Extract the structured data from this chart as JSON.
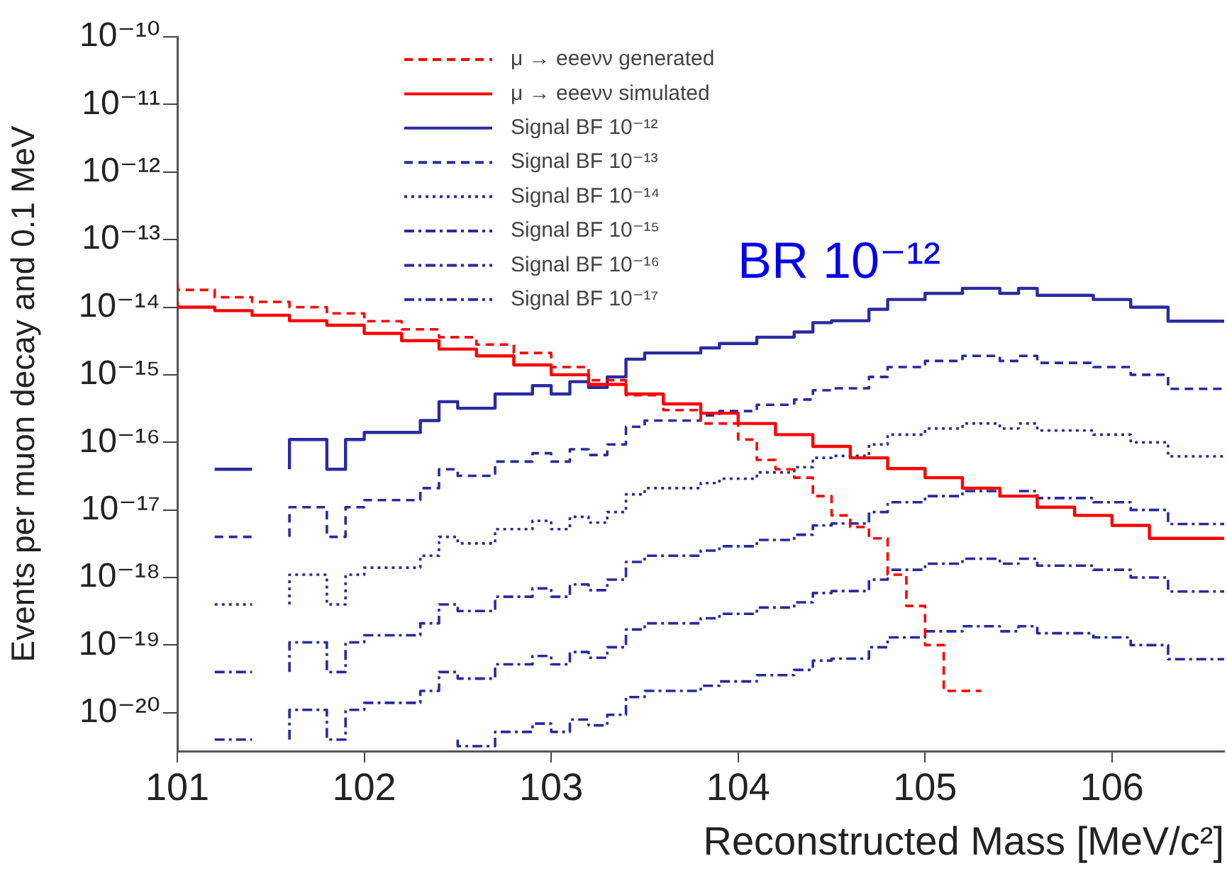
{
  "chart_data": {
    "type": "step",
    "xlabel": "Reconstructed Mass [MeV/c²]",
    "ylabel": "Events per muon decay and 0.1 MeV",
    "xlim": [
      101,
      106.6
    ],
    "xticks": [
      101,
      102,
      103,
      104,
      105,
      106
    ],
    "ylim": [
      2.7e-21,
      1e-10
    ],
    "yticks": [
      {
        "value": 1e-10,
        "label": "10⁻¹⁰"
      },
      {
        "value": 1e-11,
        "label": "10⁻¹¹"
      },
      {
        "value": 1e-12,
        "label": "10⁻¹²"
      },
      {
        "value": 1e-13,
        "label": "10⁻¹³"
      },
      {
        "value": 1e-14,
        "label": "10⁻¹⁴"
      },
      {
        "value": 1e-15,
        "label": "10⁻¹⁵"
      },
      {
        "value": 1e-16,
        "label": "10⁻¹⁶"
      },
      {
        "value": 1e-17,
        "label": "10⁻¹⁷"
      },
      {
        "value": 1e-18,
        "label": "10⁻¹⁸"
      },
      {
        "value": 1e-19,
        "label": "10⁻¹⁹"
      },
      {
        "value": 1e-20,
        "label": "10⁻²⁰"
      }
    ],
    "log": "y",
    "grid": false,
    "legend": "top",
    "marker": "none",
    "annotations": [
      "BR 10⁻¹²"
    ],
    "series": [
      {
        "name": "μ → eeeνν generated",
        "color": "#ff0000",
        "line_style": "dashed",
        "x": [
          101.0,
          101.2,
          101.4,
          101.6,
          101.8,
          102.0,
          102.2,
          102.4,
          102.6,
          102.8,
          103.0,
          103.2,
          103.4,
          103.6,
          103.8,
          104.0,
          104.1,
          104.2,
          104.3,
          104.4,
          104.5,
          104.6,
          104.7,
          104.8,
          104.9,
          105.0,
          105.1,
          105.2,
          105.3
        ],
        "values": [
          2.2e-14,
          1.8e-14,
          1.4e-14,
          1.2e-14,
          1e-14,
          8.1e-15,
          6.2e-15,
          4.7e-15,
          3.6e-15,
          2.8e-15,
          2.1e-15,
          1.3e-15,
          8.3e-16,
          5e-16,
          3e-16,
          1.9e-16,
          1.1e-16,
          5.5e-17,
          4e-17,
          3e-17,
          1.6e-17,
          8.3e-18,
          5.6e-18,
          3.8e-18,
          1.1e-18,
          3.8e-19,
          1e-19,
          2.1e-20,
          2.1e-20
        ]
      },
      {
        "name": "μ → eeeνν simulated",
        "color": "#ff0000",
        "line_style": "solid",
        "x": [
          101.0,
          101.2,
          101.4,
          101.6,
          101.8,
          102.0,
          102.2,
          102.4,
          102.6,
          102.8,
          103.0,
          103.2,
          103.4,
          103.6,
          103.8,
          104.0,
          104.2,
          104.4,
          104.6,
          104.8,
          105.0,
          105.2,
          105.4,
          105.6,
          105.8,
          106.0,
          106.2,
          106.4,
          106.6
        ],
        "values": [
          1.2e-14,
          1e-14,
          8.9e-15,
          7.6e-15,
          6.3e-15,
          5.4e-15,
          4.1e-15,
          3.2e-15,
          2.4e-15,
          1.9e-15,
          1.4e-15,
          1e-15,
          7.2e-16,
          5.2e-16,
          3.7e-16,
          2.7e-16,
          1.9e-16,
          1.3e-16,
          8.7e-17,
          5.9e-17,
          4.1e-17,
          3e-17,
          2.1e-17,
          1.6e-17,
          1.1e-17,
          8.3e-18,
          5.9e-18,
          3.8e-18,
          3.8e-18
        ]
      },
      {
        "name": "Signal BF 10⁻¹²",
        "color": "#2a2aa0",
        "line_style": "solid",
        "x": [
          101.2,
          101.4,
          101.6,
          101.8,
          101.9,
          102.0,
          102.3,
          102.4,
          102.5,
          102.7,
          102.9,
          103.0,
          103.1,
          103.2,
          103.3,
          103.4,
          103.5,
          103.8,
          103.9,
          104.1,
          104.3,
          104.4,
          104.5,
          104.7,
          104.8,
          105.0,
          105.2,
          105.4,
          105.5,
          105.6,
          105.9,
          106.1,
          106.3,
          106.4,
          106.6
        ],
        "values": [
          4e-17,
          null,
          4e-17,
          1.1e-16,
          4e-17,
          1.1e-16,
          1.4e-16,
          2.1e-16,
          4e-16,
          3.2e-16,
          5.2e-16,
          6.9e-16,
          5.2e-16,
          7.9e-16,
          6.5e-16,
          9.3e-16,
          1.7e-15,
          2.1e-15,
          2.5e-15,
          2.9e-15,
          3.6e-15,
          4.3e-15,
          5.9e-15,
          6.3e-15,
          9.3e-15,
          1.3e-14,
          1.6e-14,
          1.9e-14,
          1.6e-14,
          1.9e-14,
          1.5e-14,
          1.3e-14,
          1e-14,
          6.2e-15,
          6.2e-15
        ]
      },
      {
        "name": "Signal BF 10⁻¹³",
        "color": "#2a2aa0",
        "line_style": "dashed",
        "x": [
          101.2,
          101.4,
          101.6,
          101.8,
          101.9,
          102.0,
          102.3,
          102.4,
          102.5,
          102.7,
          102.9,
          103.0,
          103.1,
          103.2,
          103.3,
          103.4,
          103.5,
          103.8,
          103.9,
          104.1,
          104.3,
          104.4,
          104.5,
          104.7,
          104.8,
          105.0,
          105.2,
          105.4,
          105.5,
          105.6,
          105.9,
          106.1,
          106.3,
          106.4,
          106.6
        ],
        "values": [
          4e-18,
          null,
          4e-18,
          1.1e-17,
          4e-18,
          1.1e-17,
          1.4e-17,
          2.1e-17,
          4e-17,
          3.2e-17,
          5.2e-17,
          6.9e-17,
          5.2e-17,
          7.9e-17,
          6.5e-17,
          9.3e-17,
          1.7e-16,
          2.1e-16,
          2.5e-16,
          2.9e-16,
          3.6e-16,
          4.3e-16,
          5.9e-16,
          6.3e-16,
          9.3e-16,
          1.3e-15,
          1.6e-15,
          1.9e-15,
          1.6e-15,
          1.9e-15,
          1.5e-15,
          1.3e-15,
          1e-15,
          6.2e-16,
          6.2e-16
        ]
      },
      {
        "name": "Signal BF 10⁻¹⁴",
        "color": "#2a2aa0",
        "line_style": "dotted",
        "x": [
          101.2,
          101.4,
          101.6,
          101.8,
          101.9,
          102.0,
          102.3,
          102.4,
          102.5,
          102.7,
          102.9,
          103.0,
          103.1,
          103.2,
          103.3,
          103.4,
          103.5,
          103.8,
          103.9,
          104.1,
          104.3,
          104.4,
          104.5,
          104.7,
          104.8,
          105.0,
          105.2,
          105.4,
          105.5,
          105.6,
          105.9,
          106.1,
          106.3,
          106.4,
          106.6
        ],
        "values": [
          4e-19,
          null,
          4e-19,
          1.1e-18,
          4e-19,
          1.1e-18,
          1.4e-18,
          2.1e-18,
          4e-18,
          3.2e-18,
          5.2e-18,
          6.9e-18,
          5.2e-18,
          7.9e-18,
          6.5e-18,
          9.3e-18,
          1.7e-17,
          2.1e-17,
          2.5e-17,
          2.9e-17,
          3.6e-17,
          4.3e-17,
          5.9e-17,
          6.3e-17,
          9.3e-17,
          1.3e-16,
          1.6e-16,
          1.9e-16,
          1.6e-16,
          1.9e-16,
          1.5e-16,
          1.3e-16,
          1e-16,
          6.2e-17,
          6.2e-17
        ]
      },
      {
        "name": "Signal BF 10⁻¹⁵",
        "color": "#2a2aa0",
        "line_style": "dashdot",
        "x": [
          101.2,
          101.4,
          101.6,
          101.8,
          101.9,
          102.0,
          102.3,
          102.4,
          102.5,
          102.7,
          102.9,
          103.0,
          103.1,
          103.2,
          103.3,
          103.4,
          103.5,
          103.8,
          103.9,
          104.1,
          104.3,
          104.4,
          104.5,
          104.7,
          104.8,
          105.0,
          105.2,
          105.4,
          105.5,
          105.6,
          105.9,
          106.1,
          106.3,
          106.4,
          106.6
        ],
        "values": [
          4e-20,
          null,
          4e-20,
          1.1e-19,
          4e-20,
          1.1e-19,
          1.4e-19,
          2.1e-19,
          4e-19,
          3.2e-19,
          5.2e-19,
          6.9e-19,
          5.2e-19,
          7.9e-19,
          6.5e-19,
          9.3e-19,
          1.7e-18,
          2.1e-18,
          2.5e-18,
          2.9e-18,
          3.6e-18,
          4.3e-18,
          5.9e-18,
          6.3e-18,
          9.3e-18,
          1.3e-17,
          1.6e-17,
          1.9e-17,
          1.6e-17,
          1.9e-17,
          1.5e-17,
          1.3e-17,
          1e-17,
          6.2e-18,
          6.2e-18
        ]
      },
      {
        "name": "Signal BF 10⁻¹⁶",
        "color": "#2a2aa0",
        "line_style": "dashdot",
        "x": [
          101.2,
          101.4,
          101.6,
          101.8,
          101.9,
          102.0,
          102.3,
          102.4,
          102.5,
          102.7,
          102.9,
          103.0,
          103.1,
          103.2,
          103.3,
          103.4,
          103.5,
          103.8,
          103.9,
          104.1,
          104.3,
          104.4,
          104.5,
          104.7,
          104.8,
          105.0,
          105.2,
          105.4,
          105.5,
          105.6,
          105.9,
          106.1,
          106.3,
          106.4,
          106.6
        ],
        "values": [
          4e-21,
          null,
          4e-21,
          1.1e-20,
          4e-21,
          1.1e-20,
          1.4e-20,
          2.1e-20,
          4e-20,
          3.2e-20,
          5.2e-20,
          6.9e-20,
          5.2e-20,
          7.9e-20,
          6.5e-20,
          9.3e-20,
          1.7e-19,
          2.1e-19,
          2.5e-19,
          2.9e-19,
          3.6e-19,
          4.3e-19,
          5.9e-19,
          6.3e-19,
          9.3e-19,
          1.3e-18,
          1.6e-18,
          1.9e-18,
          1.6e-18,
          1.9e-18,
          1.5e-18,
          1.3e-18,
          1e-18,
          6.2e-19,
          6.2e-19
        ]
      },
      {
        "name": "Signal BF 10⁻¹⁷",
        "color": "#2a2aa0",
        "line_style": "dashdot",
        "x": [
          102.5,
          102.7,
          102.9,
          103.0,
          103.1,
          103.2,
          103.3,
          103.4,
          103.5,
          103.8,
          103.9,
          104.1,
          104.3,
          104.4,
          104.5,
          104.7,
          104.8,
          105.0,
          105.2,
          105.4,
          105.5,
          105.6,
          105.9,
          106.1,
          106.3,
          106.4,
          106.6
        ],
        "values": [
          4e-21,
          3.2e-21,
          5.2e-21,
          6.9e-21,
          5.2e-21,
          7.9e-21,
          6.5e-21,
          9.3e-21,
          1.7e-20,
          2.1e-20,
          2.5e-20,
          2.9e-20,
          3.6e-20,
          4.3e-20,
          5.9e-20,
          6.3e-20,
          9.3e-20,
          1.3e-19,
          1.6e-19,
          1.9e-19,
          1.6e-19,
          1.9e-19,
          1.5e-19,
          1.3e-19,
          1e-19,
          6.2e-20,
          6.2e-20
        ]
      }
    ]
  }
}
